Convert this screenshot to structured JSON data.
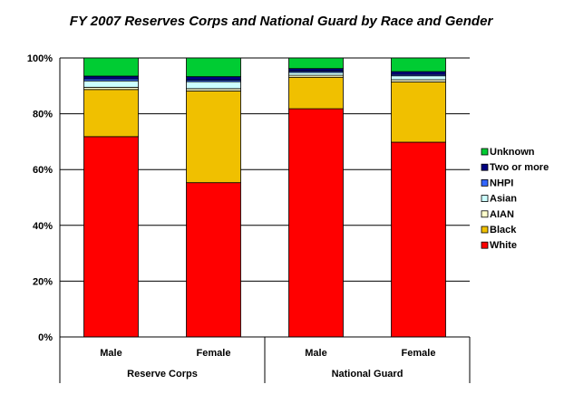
{
  "chart_data": {
    "type": "bar",
    "stacked": true,
    "percent": true,
    "title": "FY 2007 Reserves Corps and National Guard by Race and Gender",
    "categories": [
      "Male",
      "Female",
      "Male",
      "Female"
    ],
    "groups": [
      {
        "label": "Reserve Corps",
        "categories": [
          "Male",
          "Female"
        ]
      },
      {
        "label": "National Guard",
        "categories": [
          "Male",
          "Female"
        ]
      }
    ],
    "ylim": [
      0,
      100
    ],
    "yticks": [
      "0%",
      "20%",
      "40%",
      "60%",
      "80%",
      "100%"
    ],
    "grid": true,
    "legend_position": "right",
    "series": [
      {
        "name": "White",
        "color": "#FF0000",
        "values": [
          71.8,
          55.3,
          81.8,
          69.8
        ]
      },
      {
        "name": "Black",
        "color": "#F0C000",
        "values": [
          16.9,
          32.9,
          11.3,
          21.6
        ]
      },
      {
        "name": "AIAN",
        "color": "#FFFFCC",
        "values": [
          0.8,
          0.8,
          0.7,
          0.8
        ]
      },
      {
        "name": "Asian",
        "color": "#CCFFFF",
        "values": [
          2.3,
          2.5,
          1.0,
          1.4
        ]
      },
      {
        "name": "NHPI",
        "color": "#3366FF",
        "values": [
          0.7,
          0.6,
          0.5,
          0.5
        ]
      },
      {
        "name": "Two or more",
        "color": "#000080",
        "values": [
          1.0,
          1.2,
          0.9,
          1.0
        ]
      },
      {
        "name": "Unknown",
        "color": "#00CC33",
        "values": [
          6.5,
          6.7,
          3.8,
          4.9
        ]
      }
    ]
  }
}
